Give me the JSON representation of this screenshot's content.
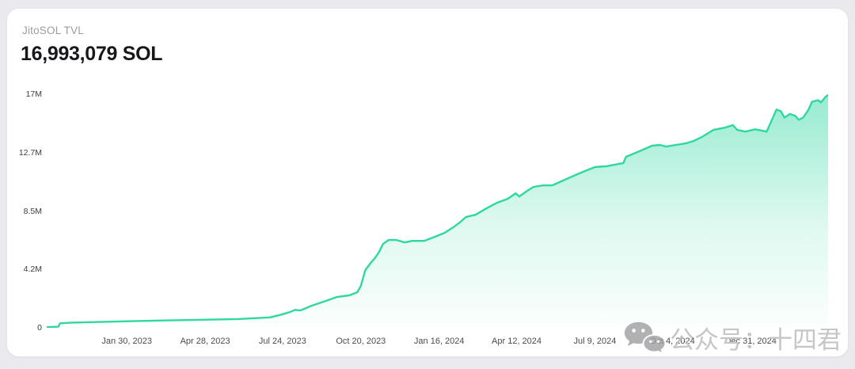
{
  "header": {
    "label": "JitoSOL TVL",
    "value": "16,993,079 SOL"
  },
  "watermark": {
    "text": "公众号：十四君"
  },
  "chart_data": {
    "type": "area",
    "title": "JitoSOL TVL",
    "unit": "SOL",
    "current_total_label": "16,993,079 SOL",
    "grid": false,
    "legend": false,
    "ylim": [
      0,
      17
    ],
    "x_domain": [
      "2022-11-01",
      "2025-03-28"
    ],
    "line_color": "#2fd7a1",
    "area_gradient": [
      {
        "offset": "0%",
        "color": "rgba(47,215,161,0.50)"
      },
      {
        "offset": "55%",
        "color": "rgba(47,215,161,0.16)"
      },
      {
        "offset": "100%",
        "color": "rgba(47,215,161,0.02)"
      }
    ],
    "y_ticks": [
      {
        "value": 0,
        "label": "0"
      },
      {
        "value": 4.25,
        "label": "4.2M"
      },
      {
        "value": 8.5,
        "label": "8.5M"
      },
      {
        "value": 12.75,
        "label": "12.7M"
      },
      {
        "value": 17,
        "label": "17M"
      }
    ],
    "x_ticks": [
      {
        "date": "2023-01-30",
        "label": "Jan 30, 2023"
      },
      {
        "date": "2023-04-28",
        "label": "Apr 28, 2023"
      },
      {
        "date": "2023-07-24",
        "label": "Jul 24, 2023"
      },
      {
        "date": "2023-10-20",
        "label": "Oct 20, 2023"
      },
      {
        "date": "2024-01-16",
        "label": "Jan 16, 2024"
      },
      {
        "date": "2024-04-12",
        "label": "Apr 12, 2024"
      },
      {
        "date": "2024-07-09",
        "label": "Jul 9, 2024"
      },
      {
        "date": "2024-10-04",
        "label": "Oct 4, 2024"
      },
      {
        "date": "2024-12-31",
        "label": "Dec 31, 2024"
      }
    ],
    "points": [
      {
        "date": "2022-11-01",
        "value": 0.05
      },
      {
        "date": "2022-11-14",
        "value": 0.08
      },
      {
        "date": "2022-11-16",
        "value": 0.33
      },
      {
        "date": "2022-11-29",
        "value": 0.38
      },
      {
        "date": "2022-12-26",
        "value": 0.42
      },
      {
        "date": "2023-01-26",
        "value": 0.47
      },
      {
        "date": "2023-03-07",
        "value": 0.53
      },
      {
        "date": "2023-04-25",
        "value": 0.59
      },
      {
        "date": "2023-06-04",
        "value": 0.64
      },
      {
        "date": "2023-07-10",
        "value": 0.76
      },
      {
        "date": "2023-07-23",
        "value": 0.97
      },
      {
        "date": "2023-08-01",
        "value": 1.14
      },
      {
        "date": "2023-08-07",
        "value": 1.31
      },
      {
        "date": "2023-08-13",
        "value": 1.26
      },
      {
        "date": "2023-08-25",
        "value": 1.59
      },
      {
        "date": "2023-09-10",
        "value": 1.95
      },
      {
        "date": "2023-09-23",
        "value": 2.24
      },
      {
        "date": "2023-10-07",
        "value": 2.36
      },
      {
        "date": "2023-10-16",
        "value": 2.59
      },
      {
        "date": "2023-10-20",
        "value": 3.05
      },
      {
        "date": "2023-10-25",
        "value": 4.2
      },
      {
        "date": "2023-10-31",
        "value": 4.72
      },
      {
        "date": "2023-11-04",
        "value": 5.01
      },
      {
        "date": "2023-11-09",
        "value": 5.47
      },
      {
        "date": "2023-11-14",
        "value": 6.1
      },
      {
        "date": "2023-11-20",
        "value": 6.39
      },
      {
        "date": "2023-11-29",
        "value": 6.39
      },
      {
        "date": "2023-12-08",
        "value": 6.22
      },
      {
        "date": "2023-12-17",
        "value": 6.33
      },
      {
        "date": "2023-12-30",
        "value": 6.33
      },
      {
        "date": "2024-01-11",
        "value": 6.62
      },
      {
        "date": "2024-01-22",
        "value": 6.91
      },
      {
        "date": "2024-02-02",
        "value": 7.37
      },
      {
        "date": "2024-02-08",
        "value": 7.66
      },
      {
        "date": "2024-02-15",
        "value": 8.06
      },
      {
        "date": "2024-02-26",
        "value": 8.23
      },
      {
        "date": "2024-03-09",
        "value": 8.69
      },
      {
        "date": "2024-03-21",
        "value": 9.1
      },
      {
        "date": "2024-04-02",
        "value": 9.39
      },
      {
        "date": "2024-04-11",
        "value": 9.79
      },
      {
        "date": "2024-04-15",
        "value": 9.56
      },
      {
        "date": "2024-04-24",
        "value": 9.97
      },
      {
        "date": "2024-05-01",
        "value": 10.26
      },
      {
        "date": "2024-05-12",
        "value": 10.37
      },
      {
        "date": "2024-05-22",
        "value": 10.37
      },
      {
        "date": "2024-05-28",
        "value": 10.54
      },
      {
        "date": "2024-06-07",
        "value": 10.83
      },
      {
        "date": "2024-06-21",
        "value": 11.23
      },
      {
        "date": "2024-07-09",
        "value": 11.7
      },
      {
        "date": "2024-07-22",
        "value": 11.76
      },
      {
        "date": "2024-08-10",
        "value": 11.99
      },
      {
        "date": "2024-08-13",
        "value": 12.45
      },
      {
        "date": "2024-08-28",
        "value": 12.85
      },
      {
        "date": "2024-09-11",
        "value": 13.25
      },
      {
        "date": "2024-09-20",
        "value": 13.31
      },
      {
        "date": "2024-09-27",
        "value": 13.19
      },
      {
        "date": "2024-10-08",
        "value": 13.31
      },
      {
        "date": "2024-10-19",
        "value": 13.42
      },
      {
        "date": "2024-10-28",
        "value": 13.6
      },
      {
        "date": "2024-11-06",
        "value": 13.88
      },
      {
        "date": "2024-11-19",
        "value": 14.4
      },
      {
        "date": "2024-12-02",
        "value": 14.57
      },
      {
        "date": "2024-12-11",
        "value": 14.75
      },
      {
        "date": "2024-12-16",
        "value": 14.4
      },
      {
        "date": "2024-12-25",
        "value": 14.28
      },
      {
        "date": "2025-01-05",
        "value": 14.45
      },
      {
        "date": "2025-01-18",
        "value": 14.28
      },
      {
        "date": "2025-01-29",
        "value": 15.88
      },
      {
        "date": "2025-02-03",
        "value": 15.76
      },
      {
        "date": "2025-02-07",
        "value": 15.3
      },
      {
        "date": "2025-02-13",
        "value": 15.56
      },
      {
        "date": "2025-02-19",
        "value": 15.44
      },
      {
        "date": "2025-02-23",
        "value": 15.13
      },
      {
        "date": "2025-02-28",
        "value": 15.3
      },
      {
        "date": "2025-03-06",
        "value": 15.88
      },
      {
        "date": "2025-03-10",
        "value": 16.46
      },
      {
        "date": "2025-03-17",
        "value": 16.57
      },
      {
        "date": "2025-03-20",
        "value": 16.4
      },
      {
        "date": "2025-03-25",
        "value": 16.8
      },
      {
        "date": "2025-03-28",
        "value": 16.95
      }
    ]
  }
}
